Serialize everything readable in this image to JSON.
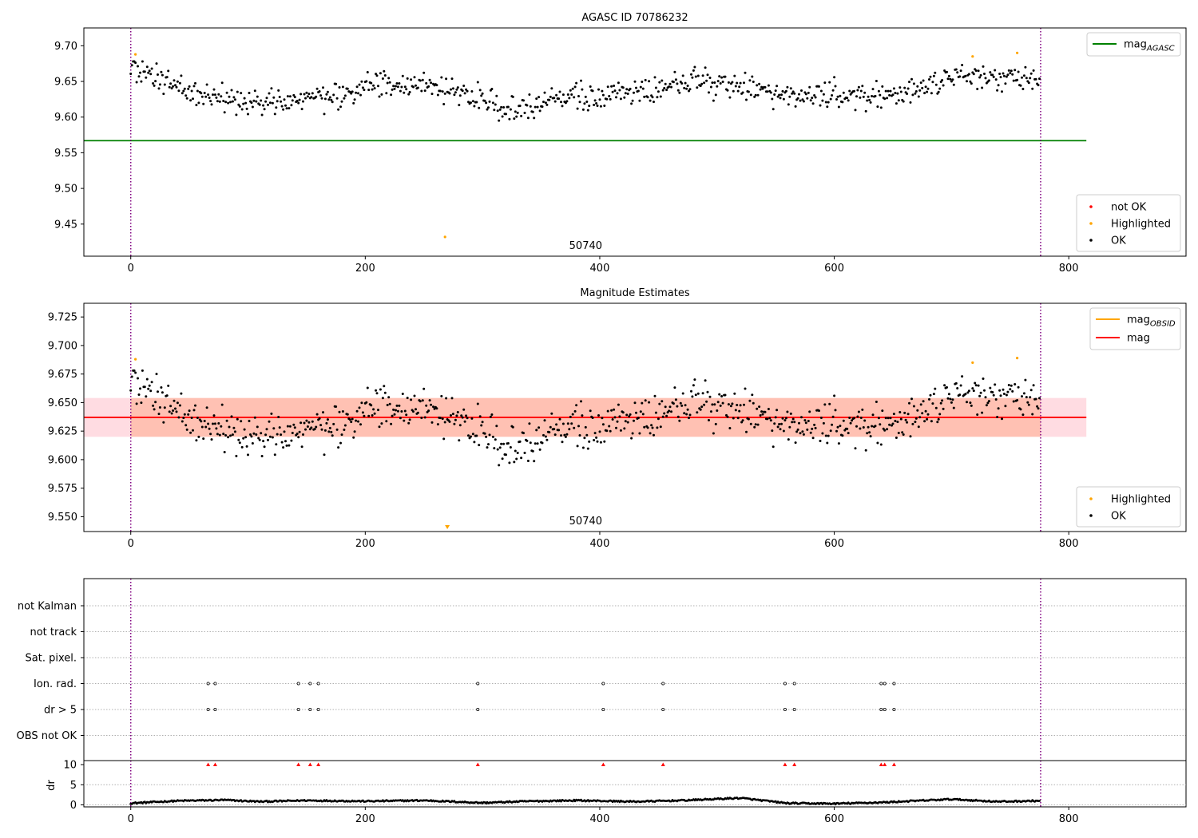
{
  "chart_data": [
    {
      "type": "scatter",
      "title": "AGASC ID 70786232",
      "xlabel": "",
      "ylabel": "",
      "xlim": [
        -40,
        900
      ],
      "ylim": [
        9.405,
        9.725
      ],
      "xticks": [
        0,
        200,
        400,
        600,
        800
      ],
      "yticks": [
        9.45,
        9.5,
        9.55,
        9.6,
        9.65,
        9.7
      ],
      "ytick_labels": [
        "9.45",
        "9.50",
        "9.55",
        "9.60",
        "9.65",
        "9.70"
      ],
      "vlines": [
        0,
        776
      ],
      "annotation": "50740",
      "hlines": [
        {
          "name": "mag",
          "subscript": "AGASC",
          "y": 9.567,
          "x": [
            -40,
            815
          ],
          "color": "#008000"
        }
      ],
      "legend_lines": [
        {
          "name": "mag",
          "subscript": "AGASC",
          "color": "#008000"
        }
      ],
      "legend_points": [
        {
          "name": "not OK",
          "color": "#ff0000"
        },
        {
          "name": "Highlighted",
          "color": "#ffa500"
        },
        {
          "name": "OK",
          "color": "#000000"
        }
      ],
      "series": [
        {
          "name": "OK",
          "color": "#000000",
          "n_points": 776,
          "x_range": [
            0,
            775
          ],
          "value_range": [
            9.593,
            9.678
          ],
          "trend": {
            "x": [
              0,
              20,
              50,
              100,
              150,
              210,
              250,
              280,
              320,
              360,
              400,
              450,
              480,
              520,
              560,
              600,
              640,
              700,
              750,
              775
            ],
            "y": [
              9.668,
              9.657,
              9.638,
              9.62,
              9.624,
              9.645,
              9.645,
              9.635,
              9.612,
              9.625,
              9.628,
              9.64,
              9.652,
              9.645,
              9.628,
              9.632,
              9.628,
              9.656,
              9.655,
              9.647
            ]
          }
        },
        {
          "name": "Highlighted",
          "color": "#ffa500",
          "x": [
            4,
            268,
            718,
            756
          ],
          "y": [
            9.688,
            9.432,
            9.685,
            9.69
          ]
        }
      ]
    },
    {
      "type": "scatter",
      "title": "Magnitude Estimates",
      "xlabel": "",
      "ylabel": "",
      "xlim": [
        -40,
        900
      ],
      "ylim": [
        9.537,
        9.737
      ],
      "xticks": [
        0,
        200,
        400,
        600,
        800
      ],
      "yticks": [
        9.55,
        9.575,
        9.6,
        9.625,
        9.65,
        9.675,
        9.7,
        9.725
      ],
      "ytick_labels": [
        "9.550",
        "9.575",
        "9.600",
        "9.625",
        "9.650",
        "9.675",
        "9.700",
        "9.725"
      ],
      "vlines": [
        0,
        776
      ],
      "annotation": "50740",
      "hlines": [
        {
          "name": "mag",
          "y": 9.637,
          "x": [
            -40,
            815
          ],
          "color": "#ff0000"
        }
      ],
      "bands": [
        {
          "y": [
            9.62,
            9.654
          ],
          "x": [
            -40,
            815
          ],
          "color": "#ffc0cb"
        },
        {
          "y": [
            9.62,
            9.654
          ],
          "x": [
            0,
            776
          ],
          "color": "#ffa07a"
        }
      ],
      "legend_lines": [
        {
          "name": "mag",
          "subscript": "OBSID",
          "color": "#ffa500"
        },
        {
          "name": "mag",
          "color": "#ff0000"
        }
      ],
      "legend_points": [
        {
          "name": "Highlighted",
          "color": "#ffa500"
        },
        {
          "name": "OK",
          "color": "#000000"
        }
      ],
      "series": [
        {
          "name": "OK",
          "color": "#000000",
          "n_points": 776,
          "x_range": [
            0,
            775
          ],
          "value_range": [
            9.593,
            9.678
          ]
        },
        {
          "name": "Highlighted",
          "color": "#ffa500",
          "x": [
            4,
            718,
            756
          ],
          "y": [
            9.688,
            9.685,
            9.689
          ]
        }
      ],
      "offscale_markers": [
        {
          "x": 270,
          "value": "below axis",
          "color": "#ffa500"
        }
      ]
    },
    {
      "type": "scatter",
      "title": "",
      "xlim": [
        -40,
        900
      ],
      "xticks": [
        0,
        200,
        400,
        600,
        800
      ],
      "vlines": [
        0,
        776
      ],
      "flag_rows": [
        "not Kalman",
        "not track",
        "Sat. pixel.",
        "Ion. rad.",
        "dr > 5",
        "OBS not OK"
      ],
      "flags": [
        {
          "row": "Ion. rad.",
          "x": [
            66,
            72,
            143,
            153,
            160,
            296,
            403,
            454,
            558,
            566,
            640,
            643,
            651
          ]
        },
        {
          "row": "dr > 5",
          "x": [
            66,
            72,
            143,
            153,
            160,
            296,
            403,
            454,
            558,
            566,
            640,
            643,
            651
          ]
        }
      ],
      "dr_panel": {
        "ylabel": "dr",
        "ylim": [
          -0.5,
          11
        ],
        "yticks": [
          0,
          5,
          10
        ],
        "ytick_labels": [
          "0",
          "5",
          "10"
        ],
        "trend": {
          "x": [
            0,
            40,
            80,
            110,
            150,
            200,
            250,
            300,
            340,
            380,
            430,
            470,
            520,
            560,
            600,
            640,
            700,
            740,
            775
          ],
          "y": [
            0.4,
            1.0,
            1.2,
            0.8,
            1.1,
            0.9,
            1.1,
            0.5,
            0.9,
            1.1,
            0.8,
            1.1,
            1.7,
            0.4,
            0.3,
            0.6,
            1.4,
            0.8,
            1.0
          ]
        },
        "clipped_markers": {
          "x": [
            66,
            72,
            143,
            153,
            160,
            296,
            403,
            454,
            558,
            566,
            640,
            643,
            651
          ],
          "y": 10,
          "color": "#ff0000"
        }
      }
    }
  ]
}
